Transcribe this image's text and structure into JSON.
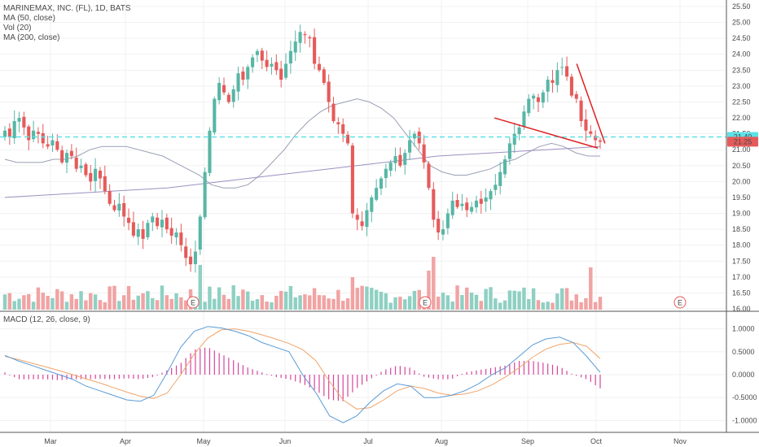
{
  "legend": {
    "title": "MARINEMAX, INC. (FL), 1D, BATS",
    "lines": [
      "MA (50, close)",
      "Vol (20)",
      "MA (200, close)"
    ]
  },
  "macd_label": "MACD (12, 26, close, 9)",
  "colors": {
    "up": "#58b6a5",
    "down": "#e65a5a",
    "vol_up": "#8fd0c3",
    "vol_down": "#f1a3a3",
    "ma50": "#9aa0b4",
    "ma200": "#9d8fc1",
    "macd_line": "#5b9bd5",
    "signal_line": "#f0a46a",
    "hist": "#d6479b",
    "resistance": "#5ce1e6",
    "trendline": "#e02020"
  },
  "chart_data": {
    "type": "candlestick",
    "price_axis": {
      "min": 16.0,
      "max": 25.5,
      "ticks": [
        "16.00",
        "16.50",
        "17.00",
        "17.50",
        "18.00",
        "18.50",
        "19.00",
        "19.50",
        "20.00",
        "20.50",
        "21.00",
        "21.50",
        "22.00",
        "22.50",
        "23.00",
        "23.50",
        "24.00",
        "24.50",
        "25.00",
        "25.50"
      ]
    },
    "x_labels": [
      "Mar",
      "Apr",
      "May",
      "Jun",
      "Jul",
      "Aug",
      "Sep",
      "Oct",
      "Nov"
    ],
    "price_tags": [
      {
        "value": "21.40",
        "price": 21.4,
        "color": "#5ce1e6"
      },
      {
        "value": "21.25",
        "price": 21.25,
        "color": "#e65a5a"
      }
    ],
    "resistance_level": 21.4,
    "trendlines": [
      {
        "from": [
          20.8,
          22.0
        ],
        "to": [
          25.2,
          21.05
        ]
      },
      {
        "from": [
          24.3,
          23.7
        ],
        "to": [
          25.5,
          21.2
        ]
      }
    ],
    "earnings_markers": [
      "E",
      "E",
      "E"
    ],
    "closes": [
      21.6,
      21.4,
      21.9,
      22.0,
      21.7,
      21.3,
      21.6,
      21.5,
      21.2,
      21.1,
      21.3,
      21.0,
      20.6,
      20.9,
      20.8,
      20.4,
      20.5,
      20.2,
      20.0,
      20.4,
      20.1,
      19.7,
      19.3,
      19.1,
      19.3,
      18.9,
      18.7,
      18.3,
      18.5,
      18.2,
      18.7,
      18.9,
      18.6,
      18.8,
      18.5,
      18.3,
      18.4,
      18.0,
      17.6,
      17.4,
      17.8,
      18.9,
      20.3,
      21.6,
      22.6,
      23.1,
      22.8,
      22.5,
      22.9,
      23.4,
      23.2,
      23.6,
      23.9,
      24.1,
      23.8,
      23.6,
      23.7,
      23.5,
      23.2,
      23.7,
      24.1,
      24.4,
      24.7,
      24.6,
      24.5,
      23.7,
      23.5,
      23.1,
      22.5,
      21.9,
      21.8,
      21.5,
      21.2,
      19.0,
      18.8,
      18.6,
      19.1,
      19.5,
      19.8,
      20.1,
      20.4,
      20.6,
      20.8,
      20.5,
      20.9,
      21.3,
      21.5,
      21.2,
      20.6,
      19.8,
      18.8,
      18.4,
      18.5,
      19.0,
      19.4,
      19.2,
      19.3,
      19.1,
      19.2,
      19.4,
      19.3,
      19.5,
      19.7,
      19.9,
      20.3,
      20.7,
      21.2,
      21.5,
      21.7,
      22.2,
      22.6,
      22.7,
      22.5,
      22.8,
      23.2,
      23.1,
      23.5,
      23.6,
      23.3,
      22.7,
      22.6,
      21.9,
      21.6,
      21.5,
      21.3,
      21.25
    ],
    "ma50": [
      20.7,
      20.6,
      20.6,
      20.6,
      20.7,
      20.7,
      20.8,
      21.0,
      21.1,
      21.1,
      21.1,
      21.0,
      20.9,
      20.8,
      20.6,
      20.4,
      20.2,
      19.9,
      19.8,
      19.8,
      19.9,
      20.2,
      20.6,
      21.0,
      21.5,
      21.9,
      22.2,
      22.4,
      22.5,
      22.6,
      22.5,
      22.3,
      22.0,
      21.5,
      21.0,
      20.5,
      20.3,
      20.2,
      20.2,
      20.3,
      20.4,
      20.6,
      20.7,
      20.9,
      21.1,
      21.2,
      21.1,
      20.9,
      20.8,
      20.8
    ],
    "ma200": [
      19.5,
      19.6,
      19.7,
      19.8,
      20.0,
      20.2,
      20.4,
      20.6,
      20.8,
      20.9,
      21.0,
      21.1
    ],
    "volume_axis": {
      "ticks": []
    },
    "macd_axis": {
      "min": -1.1,
      "max": 1.1,
      "ticks": [
        "1.0000",
        "0.5000",
        "0.0000",
        "-0.5000",
        "-1.0000"
      ]
    },
    "macd": [
      0.42,
      0.3,
      0.2,
      0.1,
      0.0,
      -0.1,
      -0.25,
      -0.35,
      -0.45,
      -0.55,
      -0.58,
      -0.45,
      0.05,
      0.6,
      0.95,
      1.05,
      1.02,
      0.95,
      0.85,
      0.7,
      0.6,
      0.5,
      0.0,
      -0.4,
      -0.9,
      -1.05,
      -0.9,
      -0.6,
      -0.35,
      -0.2,
      -0.25,
      -0.5,
      -0.5,
      -0.45,
      -0.35,
      -0.2,
      0.0,
      0.15,
      0.4,
      0.65,
      0.78,
      0.82,
      0.7,
      0.4,
      0.05
    ],
    "signal": [
      0.4,
      0.33,
      0.25,
      0.17,
      0.09,
      0.0,
      -0.09,
      -0.18,
      -0.28,
      -0.38,
      -0.47,
      -0.52,
      -0.4,
      0.0,
      0.45,
      0.8,
      0.98,
      1.0,
      0.95,
      0.87,
      0.78,
      0.68,
      0.55,
      0.3,
      -0.15,
      -0.55,
      -0.75,
      -0.72,
      -0.55,
      -0.35,
      -0.25,
      -0.3,
      -0.4,
      -0.45,
      -0.42,
      -0.35,
      -0.22,
      -0.05,
      0.15,
      0.38,
      0.56,
      0.66,
      0.7,
      0.62,
      0.35
    ],
    "macd_hist": [
      0.05,
      -0.1,
      -0.1,
      -0.1,
      -0.12,
      -0.1,
      -0.1,
      -0.09,
      -0.1,
      -0.08,
      -0.1,
      -0.05,
      0.1,
      0.25,
      0.55,
      0.6,
      0.45,
      0.3,
      0.15,
      0.05,
      -0.05,
      -0.1,
      -0.2,
      -0.35,
      -0.55,
      -0.58,
      -0.3,
      -0.1,
      0.1,
      0.2,
      0.15,
      -0.05,
      -0.1,
      -0.1,
      0.05,
      0.1,
      0.15,
      0.2,
      0.3,
      0.3,
      0.25,
      0.18,
      0.0,
      -0.1,
      -0.3
    ]
  }
}
